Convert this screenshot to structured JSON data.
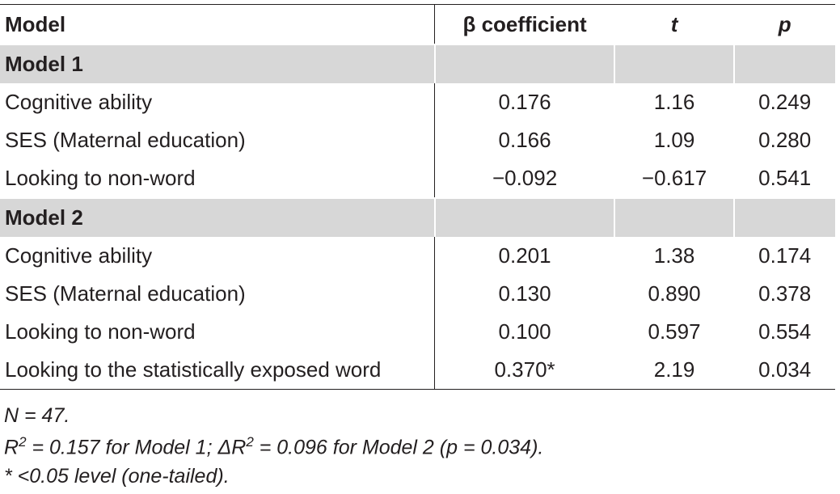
{
  "table": {
    "header": [
      "Model",
      "β coefficient",
      "t",
      "p"
    ],
    "sections": [
      {
        "title": "Model 1",
        "rows": [
          [
            "Cognitive ability",
            "0.176",
            "1.16",
            "0.249"
          ],
          [
            "SES (Maternal education)",
            "0.166",
            "1.09",
            "0.280"
          ],
          [
            "Looking to non-word",
            "−0.092",
            "−0.617",
            "0.541"
          ]
        ]
      },
      {
        "title": "Model 2",
        "rows": [
          [
            "Cognitive ability",
            "0.201",
            "1.38",
            "0.174"
          ],
          [
            "SES (Maternal education)",
            "0.130",
            "0.890",
            "0.378"
          ],
          [
            "Looking to non-word",
            "0.100",
            "0.597",
            "0.554"
          ],
          [
            "Looking to the statistically exposed word",
            "0.370*",
            "2.19",
            "0.034"
          ]
        ]
      }
    ]
  },
  "footnotes": {
    "n": "N = 47.",
    "r2": [
      "R",
      "2",
      " = 0.157 for Model 1; ΔR",
      "2",
      " = 0.096 for Model 2 (p = 0.034)."
    ],
    "sig": "* <0.05 level (one-tailed)."
  }
}
